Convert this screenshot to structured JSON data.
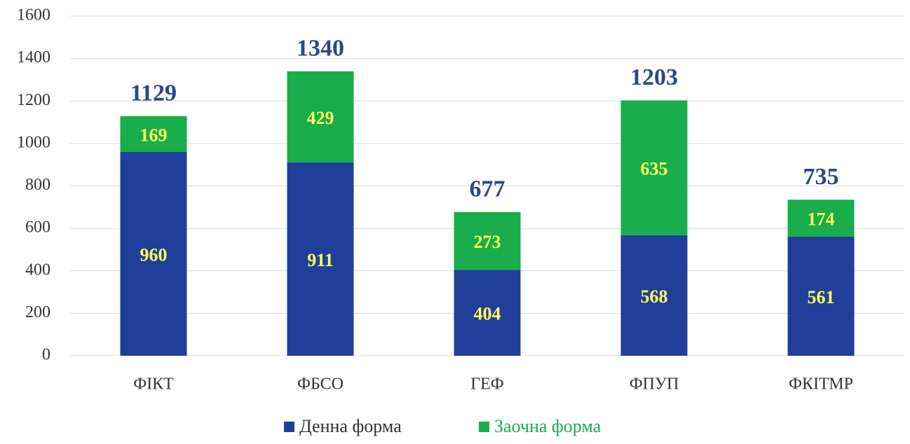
{
  "chart_data": {
    "type": "stacked_bar",
    "categories": [
      "ФІКТ",
      "ФБСО",
      "ГЕФ",
      "ФПУП",
      "ФКІТМР"
    ],
    "series": [
      {
        "name": "Денна форма",
        "color": "#203f9a",
        "values": [
          960,
          911,
          404,
          568,
          561
        ]
      },
      {
        "name": "Заочна форма",
        "color": "#1aad4b",
        "values": [
          169,
          429,
          273,
          635,
          174
        ]
      }
    ],
    "totals": [
      1129,
      1340,
      677,
      1203,
      735
    ],
    "ylim": [
      0,
      1600
    ],
    "yticks": [
      0,
      200,
      400,
      600,
      800,
      1000,
      1200,
      1400,
      1600
    ],
    "grid": true,
    "legend": "bottom"
  }
}
